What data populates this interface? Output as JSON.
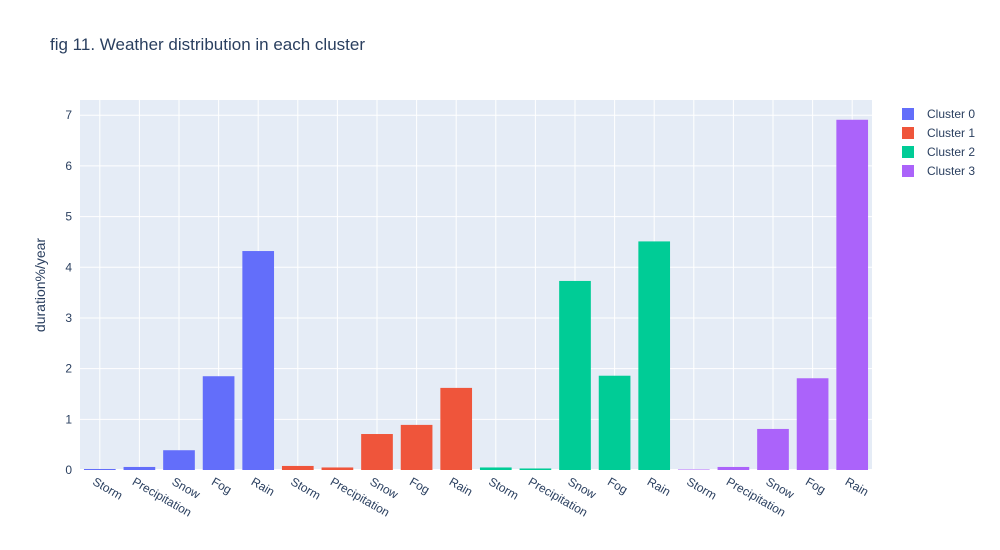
{
  "chart_data": {
    "type": "bar",
    "title": "fig 11. Weather distribution in each cluster",
    "xlabel": "",
    "ylabel": "duration%/year",
    "ylim": [
      0,
      7.3
    ],
    "yticks": [
      "0",
      "1",
      "2",
      "3",
      "4",
      "5",
      "6",
      "7"
    ],
    "grid": true,
    "legend_position": "top-right",
    "categories": [
      "Storm",
      "Precipitation",
      "Snow",
      "Fog",
      "Rain"
    ],
    "series": [
      {
        "name": "Cluster 0",
        "color": "#636efa",
        "values": [
          0.02,
          0.06,
          0.39,
          1.85,
          4.32
        ]
      },
      {
        "name": "Cluster 1",
        "color": "#ef553b",
        "values": [
          0.08,
          0.05,
          0.71,
          0.89,
          1.62
        ]
      },
      {
        "name": "Cluster 2",
        "color": "#00cc96",
        "values": [
          0.05,
          0.03,
          3.73,
          1.86,
          4.51
        ]
      },
      {
        "name": "Cluster 3",
        "color": "#ab63fa",
        "values": [
          0.01,
          0.06,
          0.81,
          1.81,
          6.91
        ]
      }
    ]
  }
}
